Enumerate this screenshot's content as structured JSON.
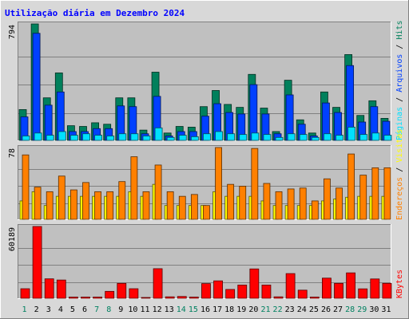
{
  "chart_data": {
    "type": "bar",
    "title": "Utilização diária em Dezembro 2024",
    "days": [
      "1",
      "2",
      "3",
      "4",
      "5",
      "6",
      "7",
      "8",
      "9",
      "10",
      "11",
      "12",
      "13",
      "14",
      "15",
      "16",
      "17",
      "18",
      "19",
      "20",
      "21",
      "22",
      "23",
      "24",
      "25",
      "26",
      "27",
      "28",
      "29",
      "30",
      "31"
    ],
    "weekend_days": [
      1,
      7,
      8,
      14,
      15,
      21,
      22,
      28,
      29
    ],
    "panels": [
      {
        "name": "hits-files-pages",
        "ymax_label": "794",
        "ymax": 794,
        "legend": [
          {
            "text": "Hits",
            "color": "#00805c"
          },
          {
            "text": "Arquivos",
            "color": "#0040ff"
          },
          {
            "text": "Páginas",
            "color": "#00e0ff"
          }
        ],
        "series": [
          {
            "name": "Hits",
            "values": [
              210,
              794,
              290,
              460,
              100,
              95,
              120,
              110,
              290,
              290,
              70,
              465,
              50,
              95,
              90,
              230,
              340,
              245,
              225,
              450,
              220,
              60,
              410,
              140,
              50,
              330,
              225,
              585,
              170,
              270,
              150
            ]
          },
          {
            "name": "Arquivos",
            "values": [
              160,
              730,
              240,
              330,
              60,
              60,
              80,
              80,
              235,
              230,
              45,
              300,
              30,
              60,
              60,
              165,
              250,
              190,
              180,
              380,
              180,
              45,
              310,
              110,
              30,
              255,
              190,
              510,
              125,
              230,
              130
            ]
          },
          {
            "name": "Páginas",
            "values": [
              30,
              50,
              35,
              60,
              35,
              45,
              35,
              30,
              45,
              45,
              30,
              85,
              20,
              35,
              25,
              45,
              60,
              45,
              40,
              50,
              40,
              20,
              45,
              40,
              20,
              45,
              35,
              90,
              40,
              50,
              35
            ]
          }
        ]
      },
      {
        "name": "visits-sites",
        "ymax_label": "78",
        "ymax": 78,
        "legend": [
          {
            "text": "Visitas",
            "color": "#ffff00"
          },
          {
            "text": "Endereços",
            "color": "#ff8000"
          }
        ],
        "series": [
          {
            "name": "Visitas",
            "values": [
              20,
              30,
              15,
              25,
              25,
              25,
              25,
              25,
              25,
              30,
              25,
              38,
              15,
              15,
              15,
              15,
              30,
              25,
              25,
              25,
              20,
              15,
              15,
              15,
              15,
              20,
              22,
              24,
              25,
              25,
              25
            ]
          },
          {
            "name": "Endereços",
            "values": [
              70,
              35,
              30,
              47,
              32,
              40,
              30,
              30,
              41,
              68,
              30,
              59,
              30,
              25,
              27,
              15,
              78,
              38,
              36,
              77,
              39,
              30,
              33,
              34,
              20,
              44,
              34,
              71,
              48,
              56,
              56
            ]
          }
        ]
      },
      {
        "name": "kbytes",
        "ymax_label": "60189",
        "ymax": 60189,
        "legend": [
          {
            "text": "KBytes",
            "color": "#ff0000"
          }
        ],
        "series": [
          {
            "name": "KBytes",
            "values": [
              8000,
              60189,
              16300,
              15300,
              1000,
              1000,
              1000,
              5800,
              12500,
              8000,
              600,
              24800,
              1200,
              1500,
              1000,
              12300,
              14600,
              7400,
              11100,
              24600,
              11100,
              1200,
              20700,
              6800,
              1000,
              16900,
              12500,
              21300,
              7900,
              16200,
              12500
            ]
          }
        ]
      }
    ]
  }
}
